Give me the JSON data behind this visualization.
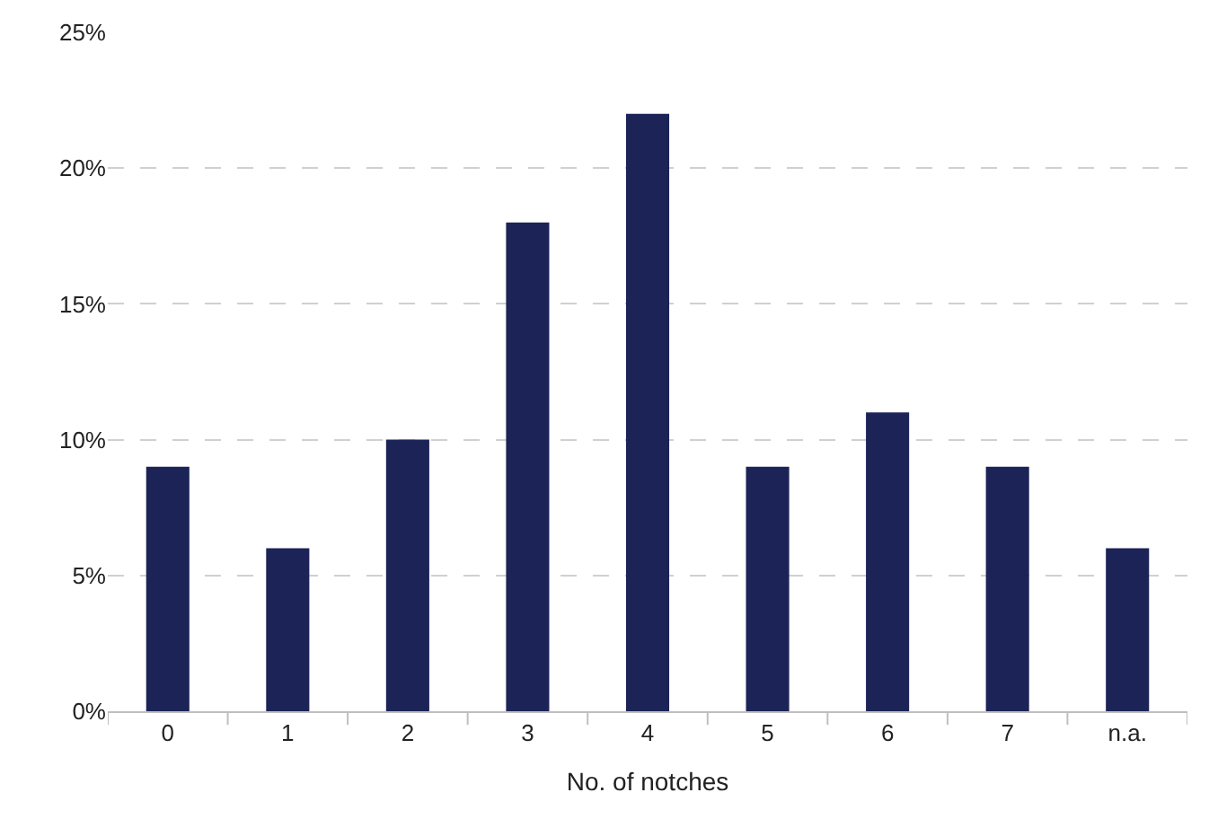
{
  "chart_data": {
    "type": "bar",
    "xlabel": "No. of notches",
    "categories": [
      "0",
      "1",
      "2",
      "3",
      "4",
      "5",
      "6",
      "7",
      "n.a."
    ],
    "values": [
      9,
      6,
      10,
      18,
      22,
      9,
      11,
      9,
      6
    ],
    "color": "#1b2357",
    "ylim": [
      0,
      25
    ],
    "yticks": [
      {
        "value": 0,
        "label": "0%"
      },
      {
        "value": 5,
        "label": "5%"
      },
      {
        "value": 10,
        "label": "10%"
      },
      {
        "value": 15,
        "label": "15%"
      },
      {
        "value": 20,
        "label": "20%"
      },
      {
        "value": 25,
        "label": "25%"
      }
    ],
    "grid": "y"
  }
}
